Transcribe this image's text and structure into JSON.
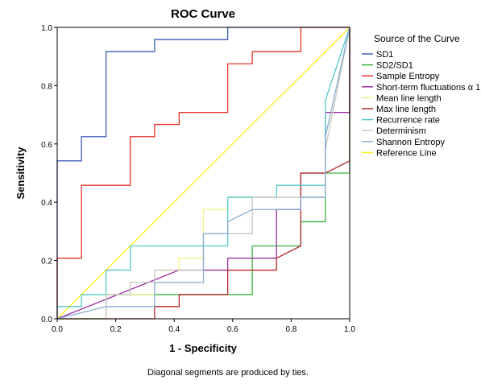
{
  "chart_data": {
    "type": "line",
    "title": "ROC Curve",
    "xlabel": "1 - Specificity",
    "ylabel": "Sensitivity",
    "xlim": [
      0,
      1
    ],
    "ylim": [
      0,
      1
    ],
    "xticks": [
      "0.0",
      "0.2",
      "0.4",
      "0.6",
      "0.8",
      "1.0"
    ],
    "yticks": [
      "0.0",
      "0.2",
      "0.4",
      "0.6",
      "0.8",
      "1.0"
    ],
    "legend_title": "Source of the Curve",
    "legend_position": "right",
    "footnote": "Diagonal segments are produced by ties.",
    "series": [
      {
        "name": "SD1",
        "color": "#3f5fb8",
        "x": [
          0,
          0,
          0.083,
          0.083,
          0.167,
          0.167,
          0.333,
          0.333,
          0.583,
          0.583,
          1.0
        ],
        "y": [
          0,
          0.542,
          0.542,
          0.625,
          0.625,
          0.917,
          0.917,
          0.958,
          0.958,
          1.0,
          1.0
        ]
      },
      {
        "name": "SD2/SD1",
        "color": "#3cb043",
        "x": [
          0,
          0.167,
          0.167,
          0.333,
          0.333,
          0.667,
          0.667,
          0.75,
          0.75,
          0.833,
          0.833,
          0.917,
          0.917,
          1.0,
          1.0
        ],
        "y": [
          0,
          0,
          0.083,
          0.083,
          0.083,
          0.083,
          0.25,
          0.25,
          0.25,
          0.25,
          0.333,
          0.333,
          0.5,
          0.5,
          1.0
        ]
      },
      {
        "name": "Sample Entropy",
        "color": "#e8322c",
        "x": [
          0,
          0,
          0.083,
          0.083,
          0.25,
          0.25,
          0.333,
          0.333,
          0.417,
          0.417,
          0.583,
          0.583,
          0.667,
          0.667,
          0.833,
          0.833,
          1.0
        ],
        "y": [
          0,
          0.208,
          0.208,
          0.458,
          0.458,
          0.625,
          0.625,
          0.667,
          0.667,
          0.708,
          0.708,
          0.875,
          0.875,
          0.917,
          0.917,
          1.0,
          1.0
        ]
      },
      {
        "name": "Short-term fluctuations α 1",
        "color": "#9b2fa0",
        "x": [
          0,
          0.417,
          0.417,
          0.583,
          0.583,
          0.75,
          0.75,
          0.833,
          0.833,
          0.917,
          0.917,
          1.0,
          1.0
        ],
        "y": [
          0,
          0.167,
          0.167,
          0.167,
          0.208,
          0.208,
          0.375,
          0.375,
          0.5,
          0.5,
          0.708,
          0.708,
          1.0
        ]
      },
      {
        "name": "Mean line length",
        "color": "#f2f28a",
        "x": [
          0,
          0.167,
          0.167,
          0.333,
          0.333,
          0.417,
          0.417,
          0.5,
          0.5,
          0.583,
          0.583,
          0.667,
          0.667,
          0.917,
          0.917,
          1.0
        ],
        "y": [
          0,
          0,
          0.083,
          0.083,
          0.167,
          0.167,
          0.208,
          0.208,
          0.375,
          0.375,
          0.417,
          0.417,
          0.417,
          0.417,
          0.583,
          1.0
        ]
      },
      {
        "name": "Max line length",
        "color": "#b22a2a",
        "x": [
          0,
          0.333,
          0.333,
          0.417,
          0.417,
          0.583,
          0.583,
          0.75,
          0.75,
          0.833,
          0.833,
          0.917,
          0.917,
          1.0,
          1.0
        ],
        "y": [
          0,
          0,
          0.042,
          0.042,
          0.083,
          0.083,
          0.167,
          0.167,
          0.208,
          0.25,
          0.5,
          0.5,
          0.5,
          0.542,
          1.0
        ]
      },
      {
        "name": "Recurrence rate",
        "color": "#55c8c8",
        "x": [
          0,
          0,
          0.083,
          0.083,
          0.167,
          0.167,
          0.25,
          0.25,
          0.417,
          0.417,
          0.583,
          0.583,
          0.75,
          0.75,
          0.917,
          0.917,
          1.0
        ],
        "y": [
          0,
          0.042,
          0.042,
          0.083,
          0.083,
          0.167,
          0.167,
          0.25,
          0.25,
          0.25,
          0.25,
          0.417,
          0.417,
          0.458,
          0.458,
          0.75,
          1.0
        ]
      },
      {
        "name": "Determinism",
        "color": "#c8c8c8",
        "x": [
          0,
          0.167,
          0.167,
          0.25,
          0.25,
          0.333,
          0.333,
          0.5,
          0.5,
          0.667,
          0.667,
          0.833,
          0.833,
          0.917,
          0.917,
          1.0
        ],
        "y": [
          0,
          0,
          0.083,
          0.083,
          0.125,
          0.125,
          0.167,
          0.167,
          0.292,
          0.292,
          0.417,
          0.417,
          0.417,
          0.417,
          0.583,
          1.0
        ]
      },
      {
        "name": "Shannon Entropy",
        "color": "#8aaed2",
        "x": [
          0,
          0.167,
          0.167,
          0.333,
          0.333,
          0.5,
          0.5,
          0.583,
          0.583,
          0.667,
          0.667,
          0.833,
          0.833,
          0.917,
          0.917,
          1.0
        ],
        "y": [
          0,
          0.042,
          0.042,
          0.042,
          0.125,
          0.125,
          0.292,
          0.292,
          0.333,
          0.375,
          0.375,
          0.375,
          0.417,
          0.417,
          0.625,
          1.0
        ]
      },
      {
        "name": "Reference Line",
        "color": "#ffee1a",
        "x": [
          0,
          1.0
        ],
        "y": [
          0,
          1.0
        ]
      }
    ]
  }
}
